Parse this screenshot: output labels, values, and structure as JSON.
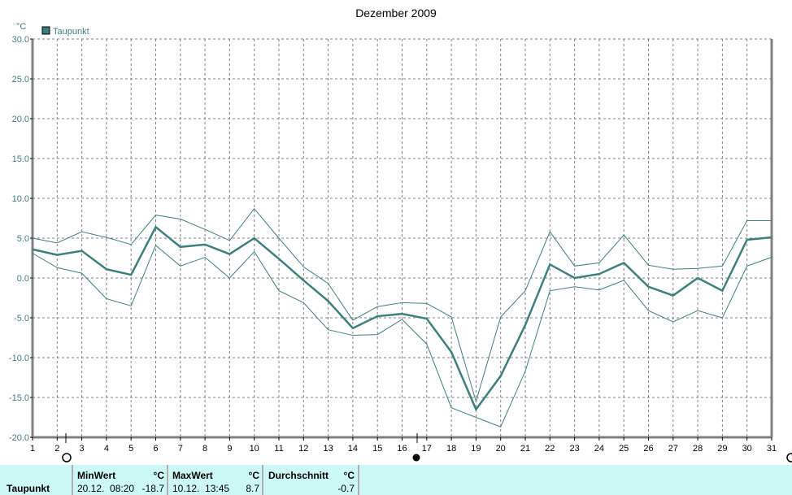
{
  "chart_data": {
    "type": "line",
    "title": "Dezember 2009",
    "ylabel": "°C",
    "xlabel": "",
    "ylim": [
      -20,
      30
    ],
    "xlim": [
      1,
      31
    ],
    "yticks": [
      "30.0",
      "25.0",
      "20.0",
      "15.0",
      "10.0",
      "5.0",
      "0.0",
      "-5.0",
      "-10.0",
      "-15.0",
      "-20.0"
    ],
    "x": [
      1,
      2,
      3,
      4,
      5,
      6,
      7,
      8,
      9,
      10,
      11,
      12,
      13,
      14,
      15,
      16,
      17,
      18,
      19,
      20,
      21,
      22,
      23,
      24,
      25,
      26,
      27,
      28,
      29,
      30,
      31
    ],
    "grid": true,
    "legend": {
      "position": "top-left",
      "entries": [
        "Taupunkt"
      ]
    },
    "series": [
      {
        "name": "Taupunkt",
        "values": [
          3.6,
          2.9,
          3.4,
          1.1,
          0.4,
          6.4,
          3.9,
          4.2,
          3.0,
          5.0,
          2.4,
          -0.3,
          -2.9,
          -6.3,
          -4.8,
          -4.5,
          -5.1,
          -9.3,
          -16.5,
          -12.3,
          -5.9,
          1.7,
          0.0,
          0.5,
          1.9,
          -1.1,
          -2.2,
          0.0,
          -1.6,
          4.8,
          5.1
        ]
      },
      {
        "name": "Taupunkt max",
        "values": [
          5.0,
          4.4,
          5.8,
          5.1,
          4.2,
          7.9,
          7.4,
          6.1,
          4.7,
          8.7,
          5.0,
          1.4,
          -0.7,
          -5.3,
          -3.6,
          -3.1,
          -3.2,
          -4.9,
          -15.5,
          -4.9,
          -1.6,
          5.8,
          1.5,
          1.9,
          5.4,
          1.6,
          1.1,
          1.2,
          1.5,
          7.2,
          7.2
        ]
      },
      {
        "name": "Taupunkt min",
        "values": [
          3.1,
          1.3,
          0.6,
          -2.6,
          -3.5,
          4.1,
          1.5,
          2.6,
          0.0,
          3.3,
          -1.6,
          -3.1,
          -6.5,
          -7.2,
          -7.1,
          -5.2,
          -8.3,
          -16.3,
          -17.5,
          -18.7,
          -11.7,
          -1.6,
          -1.1,
          -1.5,
          -0.3,
          -4.1,
          -5.5,
          -4.1,
          -5.0,
          1.5,
          2.6
        ]
      }
    ],
    "colors": {
      "line": "#3e7f7d",
      "axis_text": "#3e7f7d",
      "grid": "#808080"
    }
  },
  "footer": {
    "row_label": "Taupunkt",
    "min": {
      "header": "MinWert",
      "unit": "°C",
      "time": "20.12.  08:20",
      "value": "-18.7"
    },
    "max": {
      "header": "MaxWert",
      "unit": "°C",
      "time": "10.12.  13:45",
      "value": "8.7"
    },
    "avg": {
      "header": "Durchschnitt",
      "unit": "°C",
      "value": "-0.7"
    }
  }
}
